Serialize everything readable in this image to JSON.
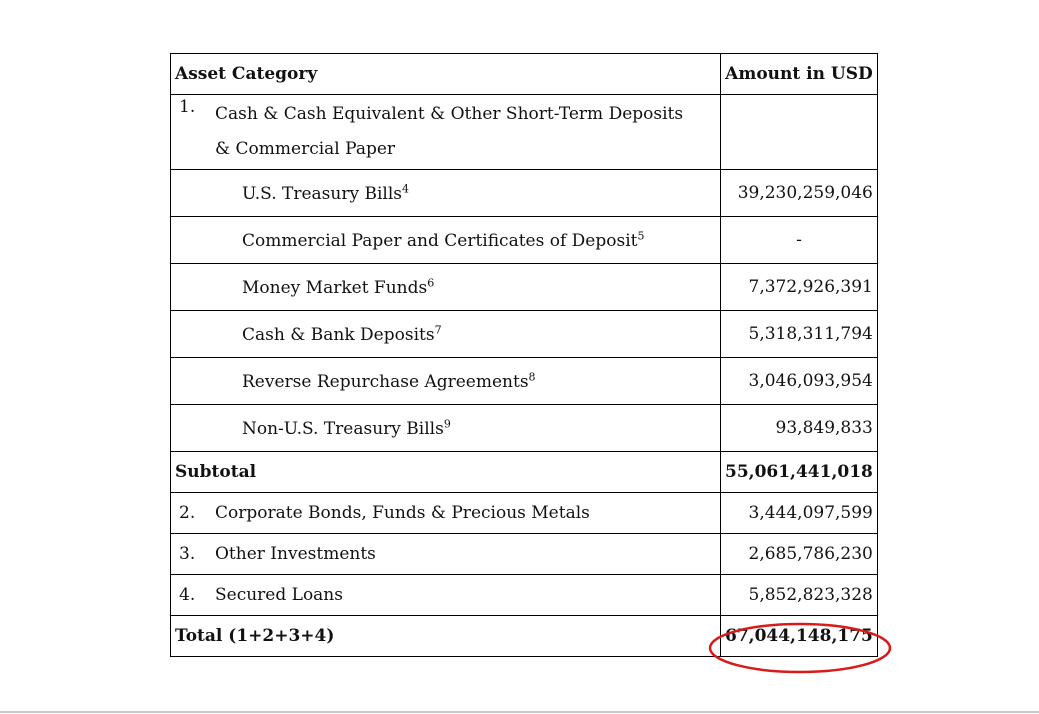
{
  "table": {
    "header": [
      "Asset Category",
      "Amount in USD"
    ],
    "rows": [
      {
        "number": "1.",
        "label": "Cash & Cash Equivalent & Other Short-Term Deposits & Commercial Paper"
      },
      {
        "label": "U.S. Treasury Bills",
        "note": "4",
        "amount": "39,230,259,046"
      },
      {
        "label": "Commercial Paper and Certificates of Deposit",
        "note": "5",
        "amount": "-"
      },
      {
        "label": "Money Market Funds",
        "note": "6",
        "amount": "7,372,926,391"
      },
      {
        "label": "Cash & Bank Deposits",
        "note": "7",
        "amount": "5,318,311,794"
      },
      {
        "label": "Reverse Repurchase Agreements",
        "note": "8",
        "amount": "3,046,093,954"
      },
      {
        "label": "Non-U.S. Treasury Bills",
        "note": "9",
        "amount": "93,849,833"
      },
      {
        "label": "Subtotal",
        "amount": "55,061,441,018",
        "bold": true
      },
      {
        "number": "2.",
        "label": "Corporate Bonds, Funds & Precious Metals",
        "amount": "3,444,097,599"
      },
      {
        "number": "3.",
        "label": "Other Investments",
        "amount": "2,685,786,230"
      },
      {
        "number": "4.",
        "label": "Secured Loans",
        "amount": "5,852,823,328"
      },
      {
        "label": "Total (1+2+3+4)",
        "amount": "67,044,148,175",
        "bold": true
      }
    ]
  }
}
